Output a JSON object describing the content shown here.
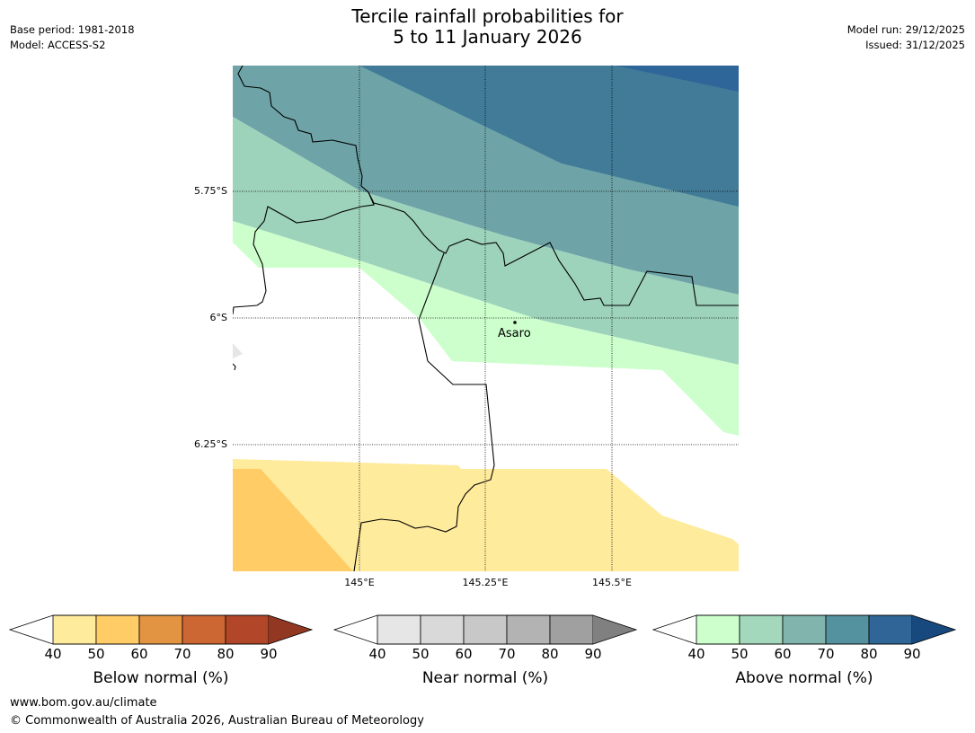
{
  "header": {
    "title_line1": "Tercile rainfall probabilities for",
    "title_line2": "5 to 11 January 2026",
    "base_period": "Base period: 1981-2018",
    "model": "Model: ACCESS-S2",
    "model_run": "Model run: 29/12/2025",
    "issued": "Issued: 31/12/2025"
  },
  "map": {
    "lat_labels": [
      "5.75°S",
      "6°S",
      "6.25°S"
    ],
    "lon_labels": [
      "145°E",
      "145.25°E",
      "145.5°E"
    ],
    "place": "Asaro",
    "colors": {
      "below_50": "#ffeb9c",
      "below_60": "#ffcc66",
      "above_40": "#ccffcc",
      "above_50": "#9dd2bb",
      "above_60": "#6ea4a7",
      "above_70": "#417b98",
      "above_80": "#2e6699",
      "near_40": "#e6e6e6"
    }
  },
  "colorbars": [
    {
      "label": "Below normal (%)",
      "ticks": [
        "40",
        "50",
        "60",
        "70",
        "80",
        "90"
      ],
      "colors": [
        "#ffffff",
        "#ffeb9c",
        "#ffcc66",
        "#e39443",
        "#cc6633",
        "#b14728",
        "#923722"
      ]
    },
    {
      "label": "Near normal (%)",
      "ticks": [
        "40",
        "50",
        "60",
        "70",
        "80",
        "90"
      ],
      "colors": [
        "#ffffff",
        "#e6e6e6",
        "#d9d9d9",
        "#c8c8c8",
        "#b3b3b3",
        "#a0a0a0",
        "#808080"
      ]
    },
    {
      "label": "Above normal (%)",
      "ticks": [
        "40",
        "50",
        "60",
        "70",
        "80",
        "90"
      ],
      "colors": [
        "#ffffff",
        "#ccffcc",
        "#a3d8bc",
        "#80b4ad",
        "#5592a0",
        "#2f6697",
        "#17497e"
      ]
    }
  ],
  "footer": {
    "url": "www.bom.gov.au/climate",
    "copyright": "© Commonwealth of Australia 2026, Australian Bureau of Meteorology"
  }
}
